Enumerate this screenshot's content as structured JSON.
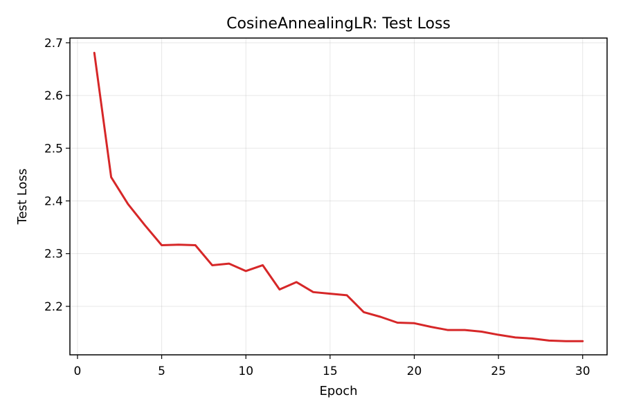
{
  "chart_data": {
    "type": "line",
    "title": "CosineAnnealingLR: Test Loss",
    "xlabel": "Epoch",
    "ylabel": "Test Loss",
    "xlim": [
      -0.45,
      31.45
    ],
    "ylim": [
      2.108,
      2.709
    ],
    "grid": true,
    "x_ticks": [
      0,
      5,
      10,
      15,
      20,
      25,
      30
    ],
    "x_tick_labels": [
      "0",
      "5",
      "10",
      "15",
      "20",
      "25",
      "30"
    ],
    "y_ticks": [
      2.2,
      2.3,
      2.4,
      2.5,
      2.6,
      2.7
    ],
    "y_tick_labels": [
      "2.2",
      "2.3",
      "2.4",
      "2.5",
      "2.6",
      "2.7"
    ],
    "series": [
      {
        "color": "#d62728",
        "x": [
          1,
          2,
          3,
          4,
          5,
          6,
          7,
          8,
          9,
          10,
          11,
          12,
          13,
          14,
          15,
          16,
          17,
          18,
          19,
          20,
          21,
          22,
          23,
          24,
          25,
          26,
          27,
          28,
          29,
          30
        ],
        "y": [
          2.681,
          2.445,
          2.394,
          2.354,
          2.316,
          2.317,
          2.316,
          2.278,
          2.281,
          2.267,
          2.278,
          2.232,
          2.246,
          2.227,
          2.224,
          2.221,
          2.189,
          2.18,
          2.169,
          2.168,
          2.161,
          2.155,
          2.155,
          2.152,
          2.146,
          2.141,
          2.139,
          2.135,
          2.134,
          2.134
        ]
      }
    ]
  }
}
